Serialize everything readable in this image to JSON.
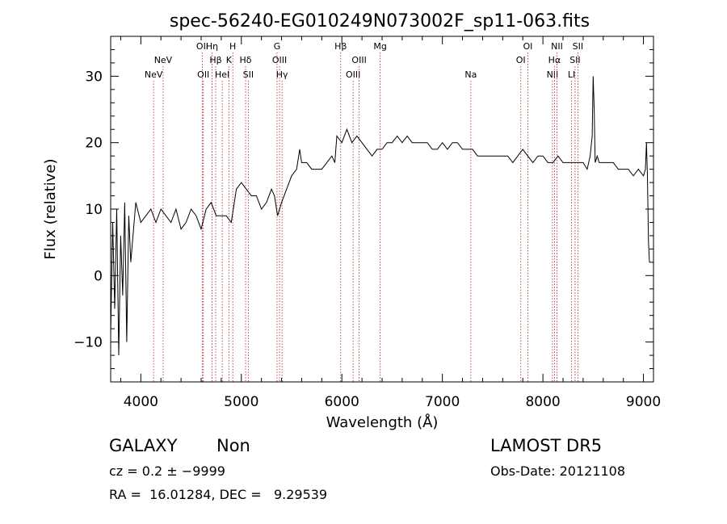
{
  "chart_data": {
    "type": "line",
    "title": "spec-56240-EG010249N073002F_sp11-063.fits",
    "xlabel": "Wavelength (Å)",
    "ylabel": "Flux (relative)",
    "xlim": [
      3700,
      9100
    ],
    "ylim": [
      -16,
      36
    ],
    "xticks": [
      4000,
      5000,
      6000,
      7000,
      8000,
      9000
    ],
    "yticks": [
      -10,
      0,
      10,
      20,
      30
    ],
    "grid": false,
    "series": [
      {
        "color": "#000000",
        "x": [
          3700,
          3720,
          3740,
          3760,
          3780,
          3800,
          3820,
          3840,
          3860,
          3880,
          3900,
          3950,
          4000,
          4050,
          4100,
          4150,
          4200,
          4250,
          4300,
          4350,
          4400,
          4450,
          4500,
          4550,
          4600,
          4650,
          4700,
          4750,
          4800,
          4850,
          4900,
          4950,
          5000,
          5050,
          5100,
          5150,
          5200,
          5250,
          5300,
          5330,
          5360,
          5400,
          5450,
          5500,
          5550,
          5580,
          5600,
          5650,
          5700,
          5750,
          5800,
          5850,
          5900,
          5930,
          5950,
          6000,
          6050,
          6100,
          6150,
          6200,
          6250,
          6300,
          6350,
          6400,
          6450,
          6500,
          6550,
          6600,
          6650,
          6700,
          6750,
          6800,
          6850,
          6900,
          6950,
          7000,
          7050,
          7100,
          7150,
          7200,
          7250,
          7300,
          7350,
          7400,
          7450,
          7500,
          7550,
          7600,
          7650,
          7700,
          7750,
          7800,
          7850,
          7900,
          7950,
          8000,
          8050,
          8100,
          8150,
          8200,
          8250,
          8300,
          8350,
          8400,
          8440,
          8470,
          8490,
          8500,
          8510,
          8520,
          8540,
          8560,
          8600,
          8650,
          8700,
          8750,
          8800,
          8850,
          8900,
          8950,
          9000,
          9020,
          9030,
          9040,
          9050,
          9060
        ],
        "y": [
          -9,
          8,
          -5,
          10,
          -12,
          6,
          -3,
          11,
          -10,
          9,
          2,
          11,
          8,
          9,
          10,
          8,
          10,
          9,
          8,
          10,
          7,
          8,
          10,
          9,
          7,
          10,
          11,
          9,
          9,
          9,
          8,
          13,
          14,
          13,
          12,
          12,
          10,
          11,
          13,
          12,
          9,
          11,
          13,
          15,
          16,
          19,
          17,
          17,
          16,
          16,
          16,
          17,
          18,
          17,
          21,
          20,
          22,
          20,
          21,
          20,
          19,
          18,
          19,
          19,
          20,
          20,
          21,
          20,
          21,
          20,
          20,
          20,
          20,
          19,
          19,
          20,
          19,
          20,
          20,
          19,
          19,
          19,
          18,
          18,
          18,
          18,
          18,
          18,
          18,
          17,
          18,
          19,
          18,
          17,
          18,
          18,
          17,
          17,
          18,
          17,
          17,
          17,
          17,
          17,
          16,
          18,
          21,
          30,
          25,
          17,
          18,
          17,
          17,
          17,
          17,
          16,
          16,
          16,
          15,
          16,
          15,
          16,
          20,
          15,
          5,
          2
        ]
      }
    ],
    "line_markers": [
      {
        "name": "NeV",
        "wavelength": 4127,
        "row": 3
      },
      {
        "name": "NeV",
        "wavelength": 4222,
        "row": 2
      },
      {
        "name": "OII",
        "wavelength": 4612,
        "row": 1
      },
      {
        "name": "OII",
        "wavelength": 4622,
        "row": 3
      },
      {
        "name": "Hη",
        "wavelength": 4708,
        "row": 1
      },
      {
        "name": "Hβ",
        "wavelength": 4745,
        "row": 2
      },
      {
        "name": "HeI",
        "wavelength": 4810,
        "row": 3
      },
      {
        "name": "K",
        "wavelength": 4876,
        "row": 2
      },
      {
        "name": "H",
        "wavelength": 4915,
        "row": 1
      },
      {
        "name": "Hδ",
        "wavelength": 5042,
        "row": 2
      },
      {
        "name": "SII",
        "wavelength": 5069,
        "row": 3
      },
      {
        "name": "G",
        "wavelength": 5355,
        "row": 1
      },
      {
        "name": "OIII",
        "wavelength": 5380,
        "row": 2
      },
      {
        "name": "Hγ",
        "wavelength": 5405,
        "row": 3
      },
      {
        "name": "Hβ",
        "wavelength": 5988,
        "row": 1
      },
      {
        "name": "OIII",
        "wavelength": 6112,
        "row": 3
      },
      {
        "name": "OIII",
        "wavelength": 6172,
        "row": 2
      },
      {
        "name": "Mg",
        "wavelength": 6381,
        "row": 1
      },
      {
        "name": "Na",
        "wavelength": 7283,
        "row": 3
      },
      {
        "name": "OI",
        "wavelength": 7780,
        "row": 2
      },
      {
        "name": "OI",
        "wavelength": 7850,
        "row": 1
      },
      {
        "name": "NII",
        "wavelength": 8095,
        "row": 3
      },
      {
        "name": "Hα",
        "wavelength": 8115,
        "row": 2
      },
      {
        "name": "NII",
        "wavelength": 8140,
        "row": 1
      },
      {
        "name": "LI",
        "wavelength": 8285,
        "row": 3
      },
      {
        "name": "SII",
        "wavelength": 8320,
        "row": 2
      },
      {
        "name": "SII",
        "wavelength": 8348,
        "row": 1
      }
    ]
  },
  "info": {
    "class": "GALAXY",
    "subclass": "Non",
    "survey": "LAMOST DR5",
    "cz_line": "cz = 0.2 ± −9999",
    "obs_date": "Obs-Date: 20121108",
    "coords": "RA =  16.01284, DEC =   9.29539"
  },
  "colors": {
    "spectrum": "#000000",
    "marker_line": "#b22222",
    "axis": "#000000"
  }
}
